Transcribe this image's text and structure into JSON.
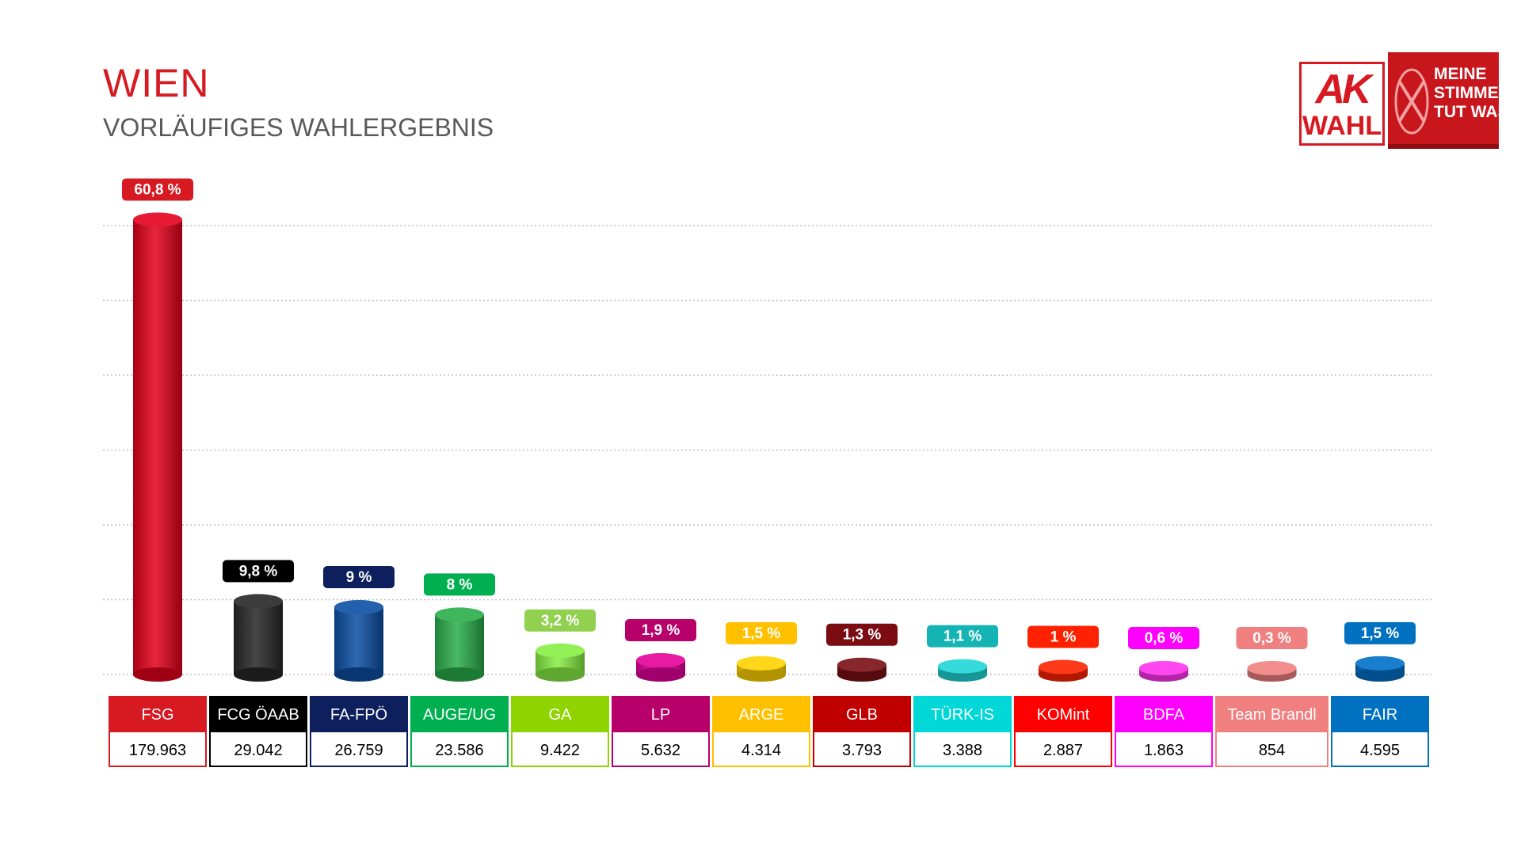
{
  "title": "WIEN",
  "subtitle": "VORLÄUFIGES WAHLERGEBNIS",
  "logo": {
    "ak_text": "AK",
    "wahl_text": "WAHL",
    "slogan": [
      "MEINE",
      "STIMME",
      "TUT WAS."
    ]
  },
  "chart_data": {
    "type": "bar",
    "title": "",
    "xlabel": "",
    "ylabel": "",
    "ylim": [
      0,
      60
    ],
    "grid": true,
    "categories": [
      "FSG",
      "FCG ÖAAB",
      "FA-FPÖ",
      "AUGE/UG",
      "GA",
      "LP",
      "ARGE",
      "GLB",
      "TÜRK-IS",
      "KOMint",
      "BDFA",
      "Team Brandl",
      "FAIR"
    ],
    "percent_values": [
      60.8,
      9.8,
      9,
      8,
      3.2,
      1.9,
      1.5,
      1.3,
      1.1,
      1,
      0.6,
      0.3,
      1.5
    ],
    "percent_labels": [
      "60,8 %",
      "9,8 %",
      "9 %",
      "8 %",
      "3,2 %",
      "1,9 %",
      "1,5 %",
      "1,3 %",
      "1,1 %",
      "1 %",
      "0,6 %",
      "0,3 %",
      "1,5 %"
    ],
    "votes": [
      "179.963",
      "29.042",
      "26.759",
      "23.586",
      "9.422",
      "5.632",
      "4.314",
      "3.793",
      "3.388",
      "2.887",
      "1.863",
      "854",
      "4.595"
    ],
    "colors": [
      "#e3001b",
      "#262626",
      "#0b4fa3",
      "#2aae4a",
      "#88ee44",
      "#e5009a",
      "#ffd200",
      "#7a0f14",
      "#1fd6d6",
      "#ff2200",
      "#ff33ee",
      "#f08080",
      "#0070c8"
    ],
    "label_colors": [
      "#d71921",
      "#000000",
      "#0d1f5c",
      "#00b050",
      "#92d050",
      "#b8006b",
      "#ffc000",
      "#7b0c12",
      "#14b4b4",
      "#ff2200",
      "#ff00ff",
      "#f08080",
      "#0070c0"
    ],
    "header_colors": [
      "#d71921",
      "#000000",
      "#0d1f5c",
      "#00b050",
      "#8fd400",
      "#b8006b",
      "#ffc000",
      "#c00000",
      "#00d7d7",
      "#ff0000",
      "#ff00ff",
      "#f08080",
      "#0070c0"
    ]
  }
}
